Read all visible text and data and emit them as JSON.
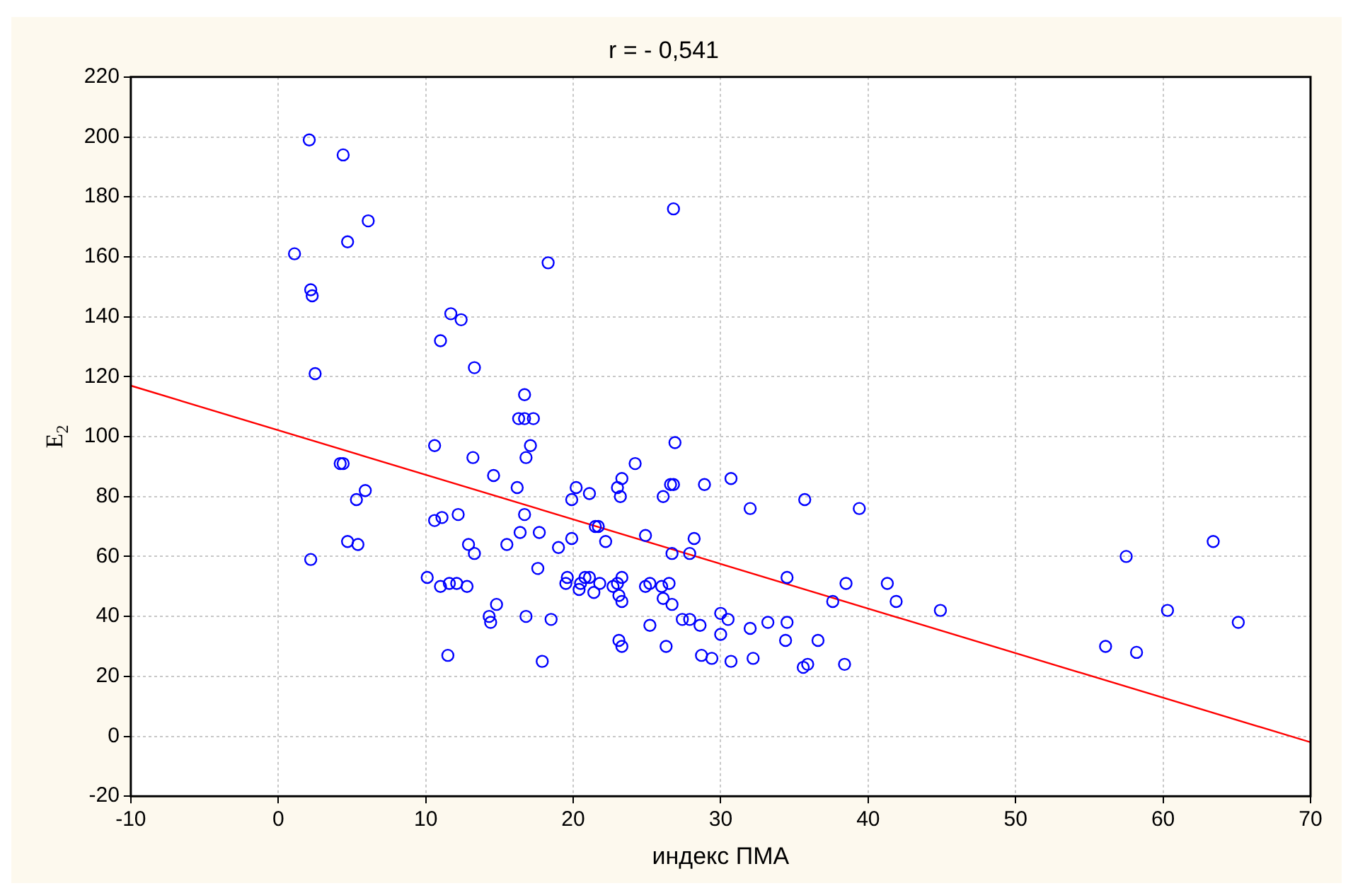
{
  "chart_data": {
    "type": "scatter",
    "title": "r = - 0,541",
    "xlabel": "индекс ПМА",
    "ylabel": "E$_{2}$",
    "xlim": [
      -10,
      70
    ],
    "xticks": [
      -10,
      0,
      10,
      20,
      30,
      40,
      50,
      60,
      70
    ],
    "ylim": [
      -20,
      220
    ],
    "yticks": [
      -20,
      0,
      20,
      40,
      60,
      80,
      100,
      120,
      140,
      160,
      180,
      200,
      220
    ],
    "grid": true,
    "legend": false,
    "series": [
      {
        "marker": "circle",
        "color": "#0000ff",
        "x": [
          2.1,
          4.4,
          6.1,
          4.7,
          1.1,
          2.2,
          2.3,
          2.5,
          11.7,
          12.4,
          11.0,
          13.3,
          26.8,
          18.3,
          16.7,
          16.3,
          16.7,
          17.3,
          17.1,
          16.8,
          16.2,
          16.7,
          16.4,
          17.7,
          19.0,
          19.9,
          20.2,
          19.9,
          21.1,
          24.2,
          23.3,
          23.0,
          23.2,
          26.9,
          26.6,
          26.8,
          26.1,
          28.9,
          30.7,
          32.0,
          35.7,
          39.4,
          21.5,
          21.7,
          22.2,
          24.9,
          26.7,
          28.2,
          27.9,
          17.6,
          19.6,
          19.5,
          20.4,
          20.5,
          20.8,
          21.1,
          21.4,
          21.8,
          22.7,
          23.0,
          23.3,
          23.1,
          23.3,
          24.9,
          25.2,
          26.0,
          26.5,
          26.1,
          26.7,
          16.8,
          18.5,
          17.9,
          23.1,
          23.3,
          25.2,
          26.3,
          27.4,
          27.9,
          28.6,
          30.0,
          30.5,
          30.0,
          32.0,
          33.2,
          34.5,
          34.5,
          34.4,
          36.6,
          38.5,
          37.6,
          41.3,
          41.9,
          28.7,
          29.4,
          30.7,
          32.2,
          35.6,
          35.9,
          38.4,
          44.9,
          57.5,
          63.4,
          60.3,
          65.1,
          56.1,
          58.2,
          10.6,
          13.2,
          14.6,
          4.2,
          4.4,
          5.9,
          5.3,
          4.7,
          5.4,
          2.2,
          10.6,
          11.1,
          12.2,
          12.9,
          13.3,
          15.5,
          10.1,
          11.0,
          11.6,
          12.1,
          12.8,
          14.8,
          14.3,
          14.4,
          11.5
        ],
        "values": [
          199,
          194,
          172,
          165,
          161,
          149,
          147,
          121,
          141,
          139,
          132,
          123,
          176,
          158,
          114,
          106,
          106,
          106,
          97,
          93,
          83,
          74,
          68,
          68,
          63,
          66,
          83,
          79,
          81,
          91,
          86,
          83,
          80,
          98,
          84,
          84,
          80,
          84,
          86,
          76,
          79,
          76,
          70,
          70,
          65,
          67,
          61,
          66,
          61,
          56,
          53,
          51,
          49,
          51,
          53,
          53,
          48,
          51,
          50,
          51,
          53,
          47,
          45,
          50,
          51,
          50,
          51,
          46,
          44,
          40,
          39,
          25,
          32,
          30,
          37,
          30,
          39,
          39,
          37,
          41,
          39,
          34,
          36,
          38,
          38,
          53,
          32,
          32,
          51,
          45,
          51,
          45,
          27,
          26,
          25,
          26,
          23,
          24,
          24,
          42,
          60,
          65,
          42,
          38,
          30,
          28,
          97,
          93,
          87,
          91,
          91,
          82,
          79,
          65,
          64,
          59,
          72,
          73,
          74,
          64,
          61,
          64,
          53,
          50,
          51,
          51,
          50,
          44,
          40,
          38,
          27
        ]
      },
      {
        "type": "line",
        "marker": "none",
        "color": "#ff0000",
        "x": [
          -10,
          70
        ],
        "values": [
          117,
          -2
        ]
      }
    ]
  }
}
